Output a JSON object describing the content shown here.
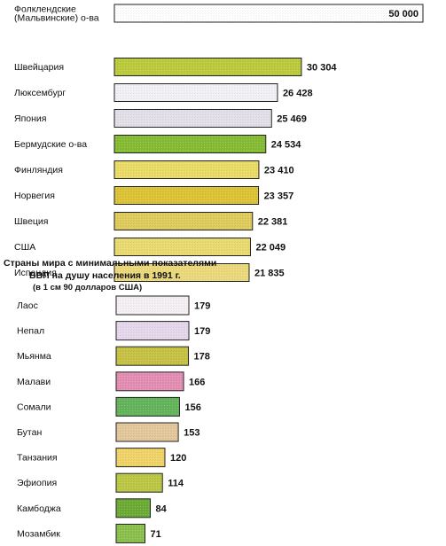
{
  "chart_data": [
    {
      "type": "bar",
      "orientation": "horizontal",
      "title": "",
      "categories": [
        "Фолклендские (Мальвинские) о-ва",
        "Швейцария",
        "Люксембург",
        "Япония",
        "Бермудские о-ва",
        "Финляндия",
        "Норвегия",
        "Швеция",
        "США",
        "Испандия"
      ],
      "category_lines": [
        [
          "Фолклендские",
          "(Мальвинские) о-ва"
        ],
        [
          "Швейцария"
        ],
        [
          "Люксембург"
        ],
        [
          "Япония"
        ],
        [
          "Бермудские о-ва"
        ],
        [
          "Финляндия"
        ],
        [
          "Норвегия"
        ],
        [
          "Швеция"
        ],
        [
          "США"
        ],
        [
          "Испандия"
        ]
      ],
      "values": [
        50000,
        30304,
        26428,
        25469,
        24534,
        23410,
        23357,
        22381,
        22049,
        21835
      ],
      "value_labels": [
        "50 000",
        "30 304",
        "26 428",
        "25 469",
        "24 534",
        "23 410",
        "23 357",
        "22 381",
        "22 049",
        "21 835"
      ],
      "colors": [
        "#ffffff",
        "#bccb3c",
        "#f2f2f6",
        "#e4e0ea",
        "#86bc34",
        "#eadc66",
        "#dcc436",
        "#e0cc5c",
        "#eadb70",
        "#ecd97c"
      ]
    },
    {
      "type": "bar",
      "orientation": "horizontal",
      "title_lines": [
        "Страны мира с минимальными показателями",
        "ВВП на душу населения  в  1991 г."
      ],
      "subtitle": "(в 1 см 90 долларов США)",
      "categories": [
        "Лаос",
        "Непал",
        "Мьянма",
        "Малави",
        "Сомали",
        "Бутан",
        "Танзания",
        "Эфиопия",
        "Камбоджа",
        "Мозамбик"
      ],
      "values": [
        179,
        179,
        178,
        166,
        156,
        153,
        120,
        114,
        84,
        71
      ],
      "value_labels": [
        "179",
        "179",
        "178",
        "166",
        "156",
        "153",
        "120",
        "114",
        "84",
        "71"
      ],
      "colors": [
        "#f4f0f4",
        "#e6d8ec",
        "#c6c244",
        "#e48eb4",
        "#64b45c",
        "#e4c89c",
        "#f0d468",
        "#bcc844",
        "#6cac34",
        "#8cc04c"
      ]
    }
  ]
}
